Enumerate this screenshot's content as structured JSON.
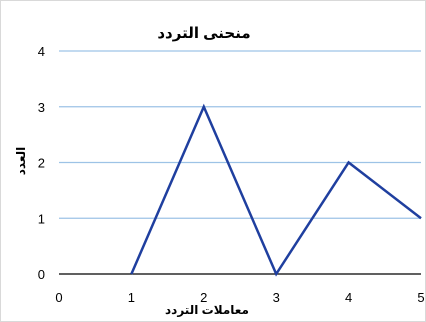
{
  "chart_data": {
    "type": "line",
    "title": "منحنى التردد",
    "xlabel": "معاملات التردد",
    "ylabel": "العدد",
    "x_ticks": [
      "0",
      "1",
      "2",
      "3",
      "4",
      "5"
    ],
    "y_ticks": [
      "0",
      "1",
      "2",
      "3",
      "4"
    ],
    "xlim": [
      0,
      5
    ],
    "ylim": [
      0,
      4
    ],
    "grid": true,
    "series": [
      {
        "x": [
          1,
          2,
          3,
          4,
          5
        ],
        "y": [
          0,
          3,
          0,
          2,
          1
        ]
      }
    ]
  },
  "colors": {
    "line": "#1f3f9f",
    "grid": "#9dc3e6",
    "axis": "#000000"
  }
}
